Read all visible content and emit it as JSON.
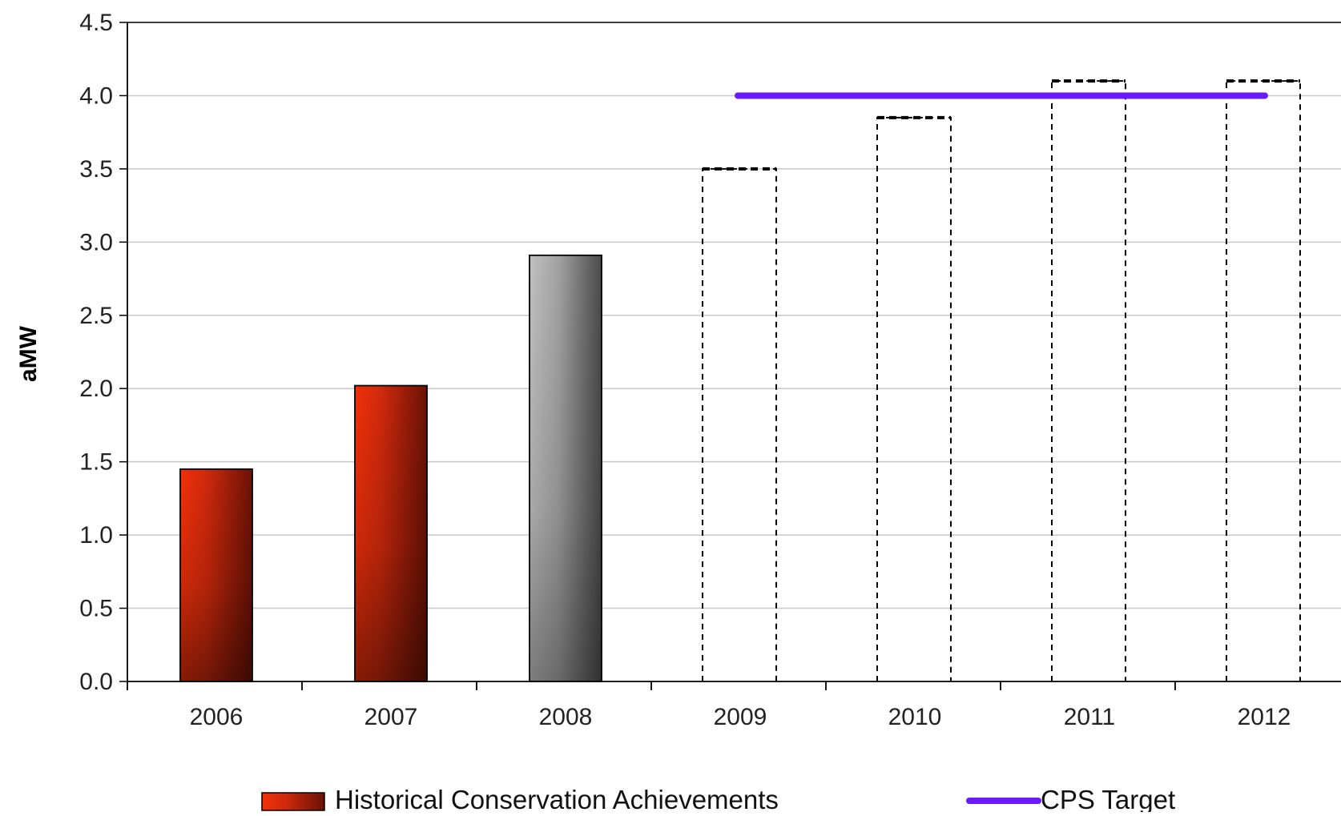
{
  "chart_data": {
    "type": "bar",
    "title": "",
    "xlabel": "",
    "ylabel": "aMW",
    "ylim": [
      0,
      4.5
    ],
    "yticks": [
      "0.0",
      "0.5",
      "1.0",
      "1.5",
      "2.0",
      "2.5",
      "3.0",
      "3.5",
      "4.0",
      "4.5"
    ],
    "categories": [
      "2006",
      "2007",
      "2008",
      "2009",
      "2010",
      "2011",
      "2012"
    ],
    "grid": true,
    "legend_position": "bottom",
    "series": [
      {
        "name": "Historical Conservation Achievements",
        "kind": "bar",
        "values": [
          1.45,
          2.02,
          null,
          null,
          null,
          null,
          null
        ],
        "color": "#b02a10"
      },
      {
        "kind": "bar",
        "values": [
          null,
          null,
          2.91,
          null,
          null,
          null,
          null
        ],
        "color": "#7a7a7a"
      },
      {
        "kind": "bar-dashed-outline",
        "values": [
          null,
          null,
          null,
          3.5,
          3.85,
          4.1,
          4.1
        ],
        "color": "#000000"
      },
      {
        "name": "CPS Target",
        "kind": "line",
        "x_range": [
          "2009",
          "2012"
        ],
        "value": 4.0,
        "color": "#6a1aff"
      }
    ]
  }
}
